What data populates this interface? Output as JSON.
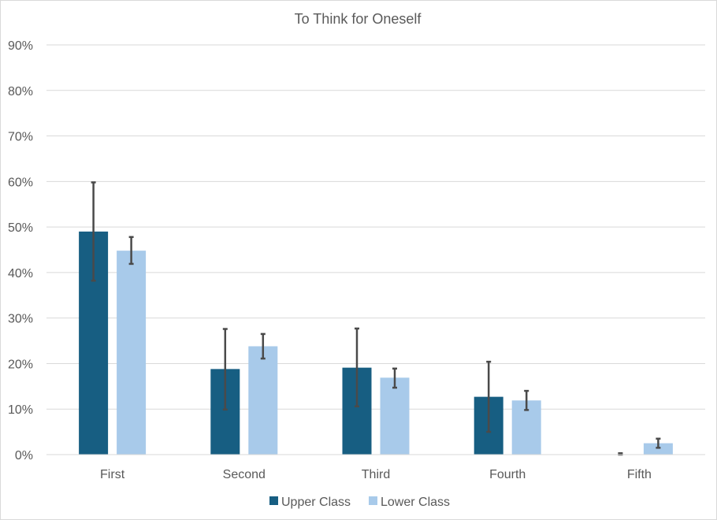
{
  "chart_data": {
    "type": "bar",
    "title": "To Think for Oneself",
    "categories": [
      "First",
      "Second",
      "Third",
      "Fourth",
      "Fifth"
    ],
    "series": [
      {
        "name": "Upper Class",
        "color": "#175e82",
        "values": [
          49,
          18.8,
          19.1,
          12.7,
          0
        ],
        "error_low": [
          38.2,
          9.9,
          10.6,
          5.0,
          0
        ],
        "error_high": [
          59.8,
          27.6,
          27.7,
          20.4,
          0.3
        ]
      },
      {
        "name": "Lower Class",
        "color": "#a8caea",
        "values": [
          44.8,
          23.8,
          16.9,
          11.9,
          2.5
        ],
        "error_low": [
          41.9,
          21.1,
          14.7,
          9.8,
          1.5
        ],
        "error_high": [
          47.8,
          26.5,
          18.9,
          14.0,
          3.5
        ]
      }
    ],
    "y_tick_labels": [
      "0%",
      "10%",
      "20%",
      "30%",
      "40%",
      "50%",
      "60%",
      "70%",
      "80%",
      "90%"
    ],
    "ylim": [
      0,
      90
    ],
    "grid": true,
    "legend_position": "bottom",
    "error_bar_color": "#4a4a4a"
  }
}
